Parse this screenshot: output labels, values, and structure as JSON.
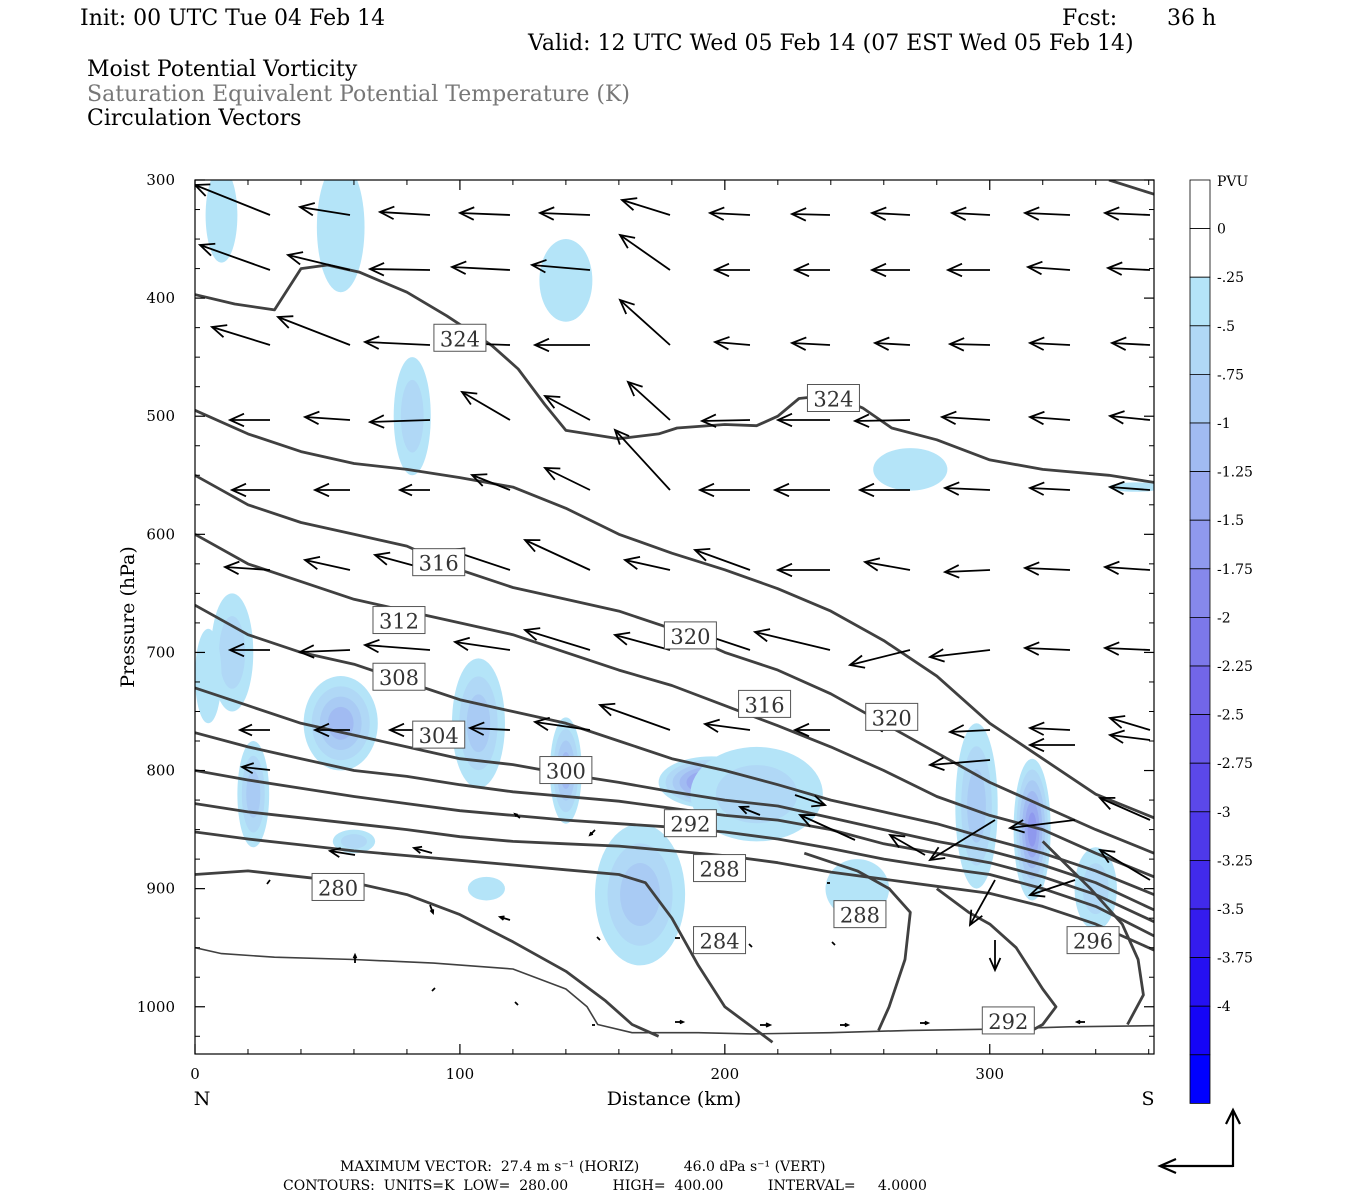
{
  "header": {
    "init": "Init: 00 UTC Tue 04 Feb 14",
    "fcst_label": "Fcst:",
    "fcst_value": "36 h",
    "valid": "Valid: 12 UTC Wed 05 Feb 14 (07 EST Wed 05 Feb 14)",
    "field1": "Moist Potential Vorticity",
    "field2": "Saturation Equivalent Potential Temperature (K)",
    "field3": "Circulation Vectors"
  },
  "footer": {
    "max_vector": "MAXIMUM VECTOR:  27.4 m s⁻¹ (HORIZ)          46.0 dPa s⁻¹ (VERT)",
    "contours": "CONTOURS:  UNITS=K  LOW=  280.00          HIGH=  400.00          INTERVAL=     4.0000"
  },
  "chart_data": {
    "type": "contour",
    "xlabel": "Distance (km)",
    "ylabel": "Pressure (hPa)",
    "x_left_label": "N",
    "x_right_label": "S",
    "xlim": [
      0,
      362
    ],
    "ylim": [
      1040,
      300
    ],
    "x_ticks": [
      "0",
      "100",
      "200",
      "300"
    ],
    "y_ticks": [
      "300",
      "400",
      "500",
      "600",
      "700",
      "800",
      "900",
      "1000"
    ],
    "colorbar": {
      "unit": "PVU",
      "labels": [
        "0",
        "-.25",
        "-.5",
        "-.75",
        "-1",
        "-1.25",
        "-1.5",
        "-1.75",
        "-2",
        "-2.25",
        "-2.5",
        "-2.75",
        "-3",
        "-3.25",
        "-3.5",
        "-3.75",
        "-4"
      ],
      "colors": [
        "#ffffff",
        "#ffffff",
        "#b4e4f8",
        "#b0d8f6",
        "#a9cbf4",
        "#a1bbf2",
        "#99aaf0",
        "#8f99ee",
        "#8688ec",
        "#7c78ea",
        "#7266e8",
        "#6757e8",
        "#5b48e9",
        "#4e39ea",
        "#412aeb",
        "#341cee",
        "#2510f2",
        "#1505f7",
        "#0000ff"
      ]
    },
    "contour_labels": [
      {
        "text": "324",
        "x": 100,
        "p": 434
      },
      {
        "text": "324",
        "x": 241,
        "p": 485
      },
      {
        "text": "316",
        "x": 92,
        "p": 624
      },
      {
        "text": "312",
        "x": 77,
        "p": 673
      },
      {
        "text": "320",
        "x": 187,
        "p": 686
      },
      {
        "text": "308",
        "x": 77,
        "p": 721
      },
      {
        "text": "316",
        "x": 215,
        "p": 744
      },
      {
        "text": "320",
        "x": 263,
        "p": 755
      },
      {
        "text": "304",
        "x": 92,
        "p": 770
      },
      {
        "text": "300",
        "x": 140,
        "p": 800
      },
      {
        "text": "292",
        "x": 187,
        "p": 845
      },
      {
        "text": "288",
        "x": 198,
        "p": 883
      },
      {
        "text": "280",
        "x": 54,
        "p": 899
      },
      {
        "text": "288",
        "x": 251,
        "p": 922
      },
      {
        "text": "284",
        "x": 198,
        "p": 944
      },
      {
        "text": "296",
        "x": 339,
        "p": 944
      },
      {
        "text": "292",
        "x": 307,
        "p": 1012
      }
    ]
  },
  "corner_icon": "vector-scale-arrows-icon"
}
